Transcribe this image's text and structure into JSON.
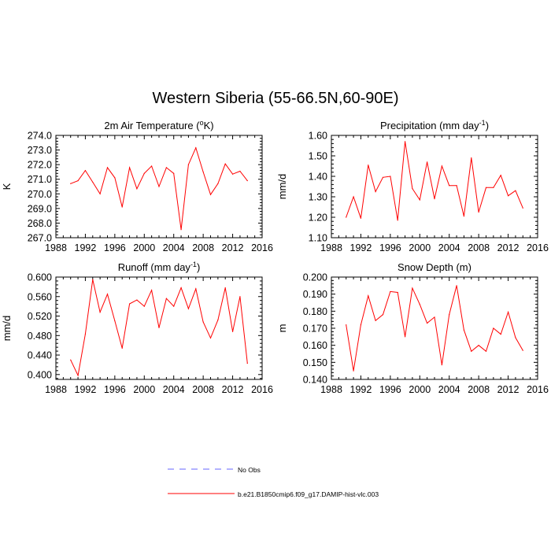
{
  "figure": {
    "title": "Western Siberia (55-66.5N,60-90E)"
  },
  "legend": {
    "obs_label": "No Obs",
    "obs_color": "#6666ff",
    "model_label": "b.e21.B1850cmip6.f09_g17.DAMIP-hist-vlc.003",
    "model_color": "#ff0000"
  },
  "chart_data": [
    {
      "type": "line",
      "title": "2m Air Temperature (°K)",
      "title_parts": [
        "2m Air Temperature (",
        "o",
        "K)"
      ],
      "ylabel": "K",
      "xlim": [
        1988,
        2016
      ],
      "ylim": [
        267.0,
        274.0
      ],
      "xticks": [
        1988,
        1992,
        1996,
        2000,
        2004,
        2008,
        2012,
        2016
      ],
      "yticks": [
        "267.0",
        "268.0",
        "269.0",
        "270.0",
        "271.0",
        "272.0",
        "273.0",
        "274.0"
      ],
      "x": [
        1990,
        1991,
        1992,
        1993,
        1994,
        1995,
        1996,
        1997,
        1998,
        1999,
        2000,
        2001,
        2002,
        2003,
        2004,
        2005,
        2006,
        2007,
        2008,
        2009,
        2010,
        2011,
        2012,
        2013,
        2014
      ],
      "series": [
        {
          "values": [
            270.7,
            270.9,
            271.6,
            270.8,
            270.0,
            271.8,
            271.1,
            269.1,
            271.8,
            270.35,
            271.4,
            271.9,
            270.5,
            271.8,
            271.4,
            267.55,
            272.0,
            273.15,
            271.5,
            269.95,
            270.7,
            272.05,
            271.35,
            271.55,
            270.9
          ]
        }
      ]
    },
    {
      "type": "line",
      "title": "Precipitation (mm day⁻¹)",
      "title_parts": [
        "Precipitation (mm day",
        "-1",
        ")"
      ],
      "ylabel": "mm/d",
      "xlim": [
        1988,
        2016
      ],
      "ylim": [
        1.1,
        1.6
      ],
      "xticks": [
        1988,
        1992,
        1996,
        2000,
        2004,
        2008,
        2012,
        2016
      ],
      "yticks": [
        "1.10",
        "1.20",
        "1.30",
        "1.40",
        "1.50",
        "1.60"
      ],
      "x": [
        1990,
        1991,
        1992,
        1993,
        1994,
        1995,
        1996,
        1997,
        1998,
        1999,
        2000,
        2001,
        2002,
        2003,
        2004,
        2005,
        2006,
        2007,
        2008,
        2009,
        2010,
        2011,
        2012,
        2013,
        2014
      ],
      "series": [
        {
          "values": [
            1.2,
            1.3,
            1.195,
            1.455,
            1.325,
            1.395,
            1.4,
            1.185,
            1.57,
            1.34,
            1.285,
            1.47,
            1.29,
            1.45,
            1.355,
            1.355,
            1.205,
            1.49,
            1.225,
            1.345,
            1.345,
            1.405,
            1.305,
            1.33,
            1.245
          ]
        }
      ]
    },
    {
      "type": "line",
      "title": "Runoff (mm day⁻¹)",
      "title_parts": [
        "Runoff (mm day",
        "-1",
        ")"
      ],
      "ylabel": "mm/d",
      "xlim": [
        1988,
        2016
      ],
      "ylim": [
        0.39,
        0.6
      ],
      "xticks": [
        1988,
        1992,
        1996,
        2000,
        2004,
        2008,
        2012,
        2016
      ],
      "yticks": [
        "0.400",
        "0.440",
        "0.480",
        "0.520",
        "0.560",
        "0.600"
      ],
      "yticks_values": [
        0.4,
        0.44,
        0.48,
        0.52,
        0.56,
        0.6
      ],
      "x": [
        1990,
        1991,
        1992,
        1993,
        1994,
        1995,
        1996,
        1997,
        1998,
        1999,
        2000,
        2001,
        2002,
        2003,
        2004,
        2005,
        2006,
        2007,
        2008,
        2009,
        2010,
        2011,
        2012,
        2013,
        2014
      ],
      "series": [
        {
          "values": [
            0.43,
            0.398,
            0.483,
            0.595,
            0.528,
            0.565,
            0.51,
            0.454,
            0.545,
            0.553,
            0.54,
            0.573,
            0.496,
            0.556,
            0.54,
            0.578,
            0.535,
            0.576,
            0.508,
            0.475,
            0.512,
            0.578,
            0.488,
            0.56,
            0.423
          ]
        }
      ]
    },
    {
      "type": "line",
      "title": "Snow Depth (m)",
      "title_parts": [
        "Snow Depth (m)",
        "",
        ""
      ],
      "ylabel": "m",
      "xlim": [
        1988,
        2016
      ],
      "ylim": [
        0.14,
        0.2
      ],
      "xticks": [
        1988,
        1992,
        1996,
        2000,
        2004,
        2008,
        2012,
        2016
      ],
      "yticks": [
        "0.140",
        "0.150",
        "0.160",
        "0.170",
        "0.180",
        "0.190",
        "0.200"
      ],
      "x": [
        1990,
        1991,
        1992,
        1993,
        1994,
        1995,
        1996,
        1997,
        1998,
        1999,
        2000,
        2001,
        2002,
        2003,
        2004,
        2005,
        2006,
        2007,
        2008,
        2009,
        2010,
        2011,
        2012,
        2013,
        2014
      ],
      "series": [
        {
          "values": [
            0.172,
            0.145,
            0.172,
            0.189,
            0.1745,
            0.178,
            0.1915,
            0.191,
            0.165,
            0.1935,
            0.184,
            0.173,
            0.1765,
            0.1485,
            0.178,
            0.195,
            0.169,
            0.1565,
            0.16,
            0.1565,
            0.17,
            0.1665,
            0.1795,
            0.1645,
            0.157
          ]
        }
      ]
    }
  ]
}
